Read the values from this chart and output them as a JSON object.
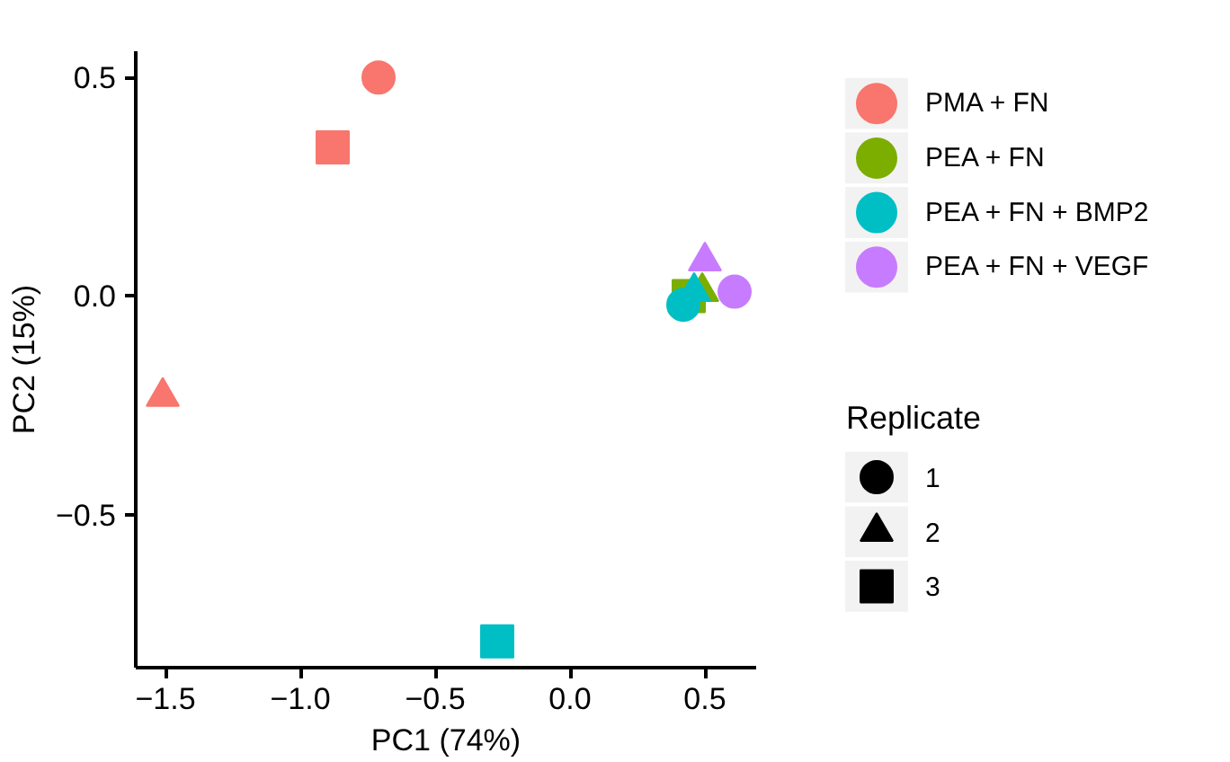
{
  "chart_data": {
    "type": "scatter",
    "xlabel": "PC1 (74%)",
    "ylabel": "PC2 (15%)",
    "xlim": [
      -1.61,
      0.69
    ],
    "ylim": [
      -0.85,
      0.56
    ],
    "xticks": [
      {
        "value": -1.5,
        "label": "−1.5"
      },
      {
        "value": -1.0,
        "label": "−1.0"
      },
      {
        "value": -0.5,
        "label": "−0.5"
      },
      {
        "value": 0.0,
        "label": "0.0"
      },
      {
        "value": 0.5,
        "label": "0.5"
      }
    ],
    "yticks": [
      {
        "value": -0.5,
        "label": "−0.5"
      },
      {
        "value": 0.0,
        "label": "0.0"
      },
      {
        "value": 0.5,
        "label": "0.5"
      }
    ],
    "grid": false,
    "legend": "right",
    "legend_title": "Replicate",
    "series": [
      {
        "name": "PMA + FN",
        "color": "#f8766d",
        "x": [
          -0.71,
          -1.51,
          -0.88
        ],
        "values": [
          0.5,
          -0.23,
          0.34
        ],
        "marker": [
          "circle",
          "triangle",
          "square"
        ]
      },
      {
        "name": "PEA + FN",
        "color": "#7cae00",
        "x": [
          null,
          0.49,
          0.44
        ],
        "values": [
          null,
          0.01,
          0.0
        ],
        "marker": [
          "circle",
          "triangle",
          "square"
        ]
      },
      {
        "name": "PEA + FN + BMP2",
        "color": "#00bfc4",
        "x": [
          0.42,
          0.46,
          -0.27
        ],
        "values": [
          -0.02,
          0.01,
          -0.79
        ],
        "marker": [
          "circle",
          "triangle",
          "square"
        ]
      },
      {
        "name": "PEA + FN + VEGF",
        "color": "#c77cff",
        "x": [
          0.61,
          0.5,
          null
        ],
        "values": [
          0.01,
          0.08,
          null
        ],
        "marker": [
          "circle",
          "triangle",
          "square"
        ]
      },
      {
        "name": "1",
        "color": "#000000",
        "x": [
          null
        ],
        "values": [
          null
        ],
        "marker": "circle"
      },
      {
        "name": "2",
        "color": "#000000",
        "x": [
          null
        ],
        "values": [
          null
        ],
        "marker": "triangle"
      },
      {
        "name": "3",
        "color": "#000000",
        "x": [
          null
        ],
        "values": [
          null
        ],
        "marker": "square"
      }
    ]
  }
}
